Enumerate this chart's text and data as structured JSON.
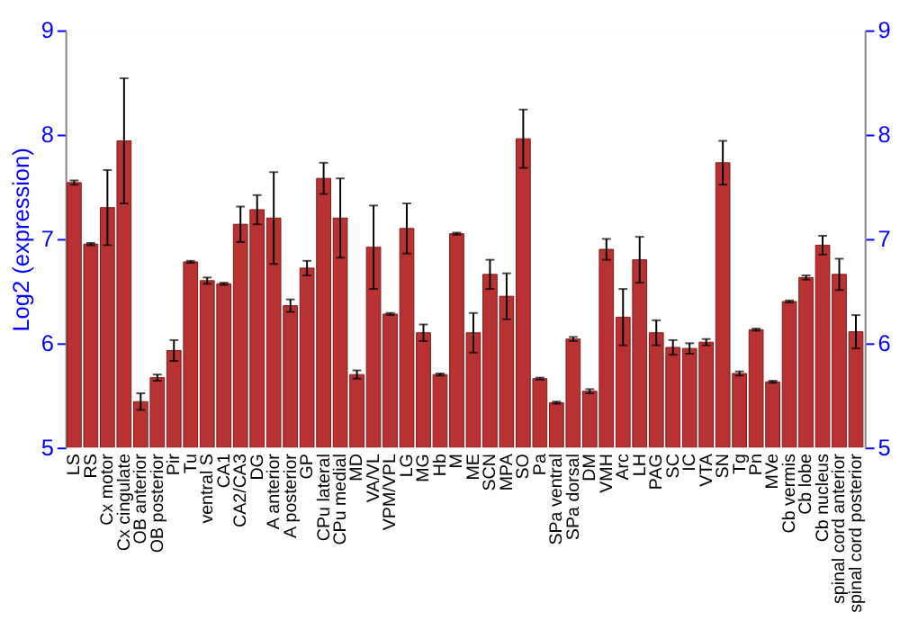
{
  "chart_data": {
    "type": "bar",
    "ylabel": "Log2 (expression)",
    "categories": [
      "LS",
      "RS",
      "Cx motor",
      "Cx cingulate",
      "OB anterior",
      "OB posterior",
      "Pir",
      "Tu",
      "ventral S",
      "CA1",
      "CA2/CA3",
      "DG",
      "A anterior",
      "A posterior",
      "GP",
      "CPu lateral",
      "CPu medial",
      "MD",
      "VA/VL",
      "VPM/VPL",
      "LG",
      "MG",
      "Hb",
      "M",
      "ME",
      "SCN",
      "MPA",
      "SO",
      "Pa",
      "SPa ventral",
      "SPa dorsal",
      "DM",
      "VMH",
      "Arc",
      "LH",
      "PAG",
      "SC",
      "IC",
      "VTA",
      "SN",
      "Tg",
      "Pn",
      "MVe",
      "Cb vermis",
      "Cb lobe",
      "Cb nucleus",
      "spinal cord anterior",
      "spinal cord posterior"
    ],
    "values": [
      7.54,
      6.95,
      7.3,
      7.94,
      5.44,
      5.67,
      5.93,
      6.78,
      6.6,
      6.57,
      7.14,
      7.28,
      7.2,
      6.36,
      6.72,
      7.58,
      7.2,
      5.7,
      6.92,
      6.28,
      7.1,
      6.1,
      5.7,
      7.05,
      6.1,
      6.66,
      6.45,
      7.96,
      5.66,
      5.43,
      6.04,
      5.54,
      6.9,
      6.25,
      6.8,
      6.1,
      5.96,
      5.95,
      6.01,
      7.73,
      5.71,
      6.13,
      5.63,
      6.4,
      6.63,
      6.94,
      6.66,
      6.11
    ],
    "errors": [
      0.02,
      0.01,
      0.36,
      0.6,
      0.08,
      0.03,
      0.1,
      0.01,
      0.03,
      0.01,
      0.17,
      0.14,
      0.44,
      0.06,
      0.07,
      0.15,
      0.38,
      0.04,
      0.4,
      0.01,
      0.24,
      0.08,
      0.01,
      0.01,
      0.19,
      0.14,
      0.22,
      0.28,
      0.01,
      0.01,
      0.02,
      0.02,
      0.1,
      0.27,
      0.22,
      0.12,
      0.07,
      0.05,
      0.03,
      0.21,
      0.02,
      0.01,
      0.01,
      0.01,
      0.02,
      0.09,
      0.15,
      0.16
    ],
    "color": "#b83232",
    "ylim": [
      5,
      9
    ],
    "yticks": [
      5,
      6,
      7,
      8,
      9
    ],
    "y2lim": [
      5,
      9
    ],
    "y2ticks": [
      5,
      6,
      7,
      8,
      9
    ],
    "grid": "y"
  }
}
